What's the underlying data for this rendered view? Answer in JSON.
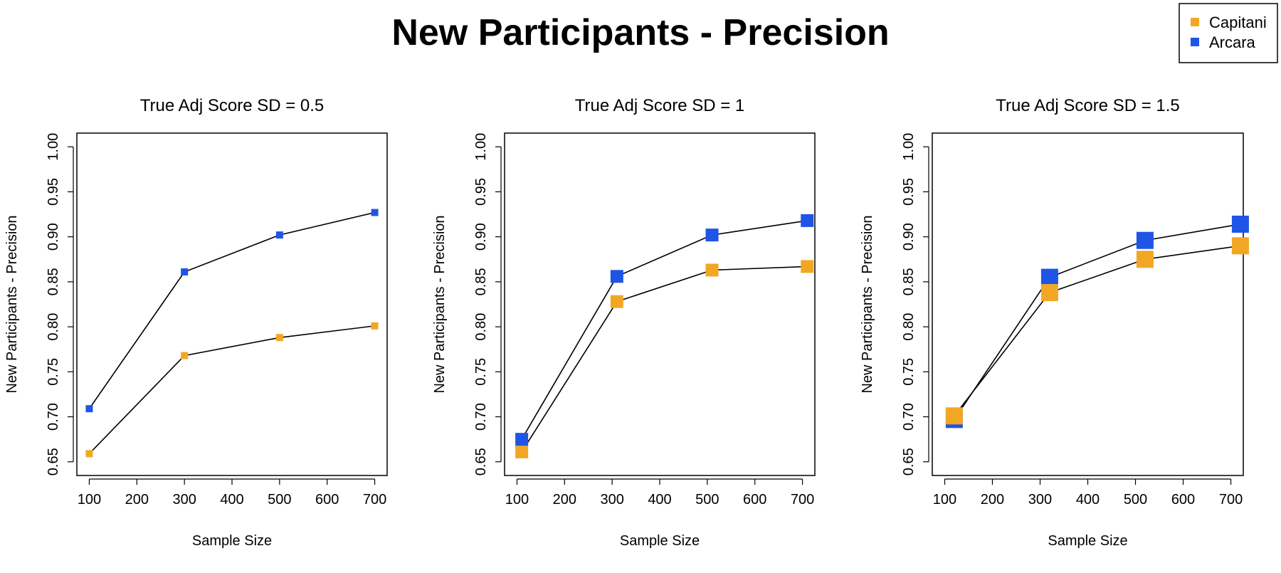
{
  "title": "New Participants - Precision",
  "legend": {
    "position": "top-right",
    "items": [
      {
        "label": "Capitani",
        "color": "#f2a724"
      },
      {
        "label": "Arcara",
        "color": "#1f55e6"
      }
    ]
  },
  "chart_data": [
    {
      "type": "line",
      "title": "True Adj Score SD = 0.5",
      "xlabel": "Sample Size",
      "ylabel": "New Participants - Precision",
      "xlim": [
        100,
        700
      ],
      "ylim": [
        0.65,
        1.0
      ],
      "xticks": [
        "100",
        "200",
        "300",
        "400",
        "500",
        "600",
        "700"
      ],
      "yticks": [
        "0.65",
        "0.70",
        "0.75",
        "0.80",
        "0.85",
        "0.90",
        "0.95",
        "1.00"
      ],
      "x": [
        100,
        300,
        500,
        700
      ],
      "series": [
        {
          "name": "Capitani",
          "color": "#f2a724",
          "values": [
            0.659,
            0.768,
            0.788,
            0.801
          ]
        },
        {
          "name": "Arcara",
          "color": "#1f55e6",
          "values": [
            0.709,
            0.861,
            0.902,
            0.927
          ]
        }
      ]
    },
    {
      "type": "line",
      "title": "True Adj Score SD = 1",
      "xlabel": "Sample Size",
      "ylabel": "New Participants - Precision",
      "xlim": [
        100,
        700
      ],
      "ylim": [
        0.65,
        1.0
      ],
      "xticks": [
        "100",
        "200",
        "300",
        "400",
        "500",
        "600",
        "700"
      ],
      "yticks": [
        "0.65",
        "0.70",
        "0.75",
        "0.80",
        "0.85",
        "0.90",
        "0.95",
        "1.00"
      ],
      "x": [
        110,
        310,
        510,
        710
      ],
      "series": [
        {
          "name": "Capitani",
          "color": "#f2a724",
          "values": [
            0.661,
            0.828,
            0.863,
            0.867
          ]
        },
        {
          "name": "Arcara",
          "color": "#1f55e6",
          "values": [
            0.675,
            0.856,
            0.902,
            0.918
          ]
        }
      ]
    },
    {
      "type": "line",
      "title": "True Adj Score SD = 1.5",
      "xlabel": "Sample Size",
      "ylabel": "New Participants - Precision",
      "xlim": [
        100,
        700
      ],
      "ylim": [
        0.65,
        1.0
      ],
      "xticks": [
        "100",
        "200",
        "300",
        "400",
        "500",
        "600",
        "700"
      ],
      "yticks": [
        "0.65",
        "0.70",
        "0.75",
        "0.80",
        "0.85",
        "0.90",
        "0.95",
        "1.00"
      ],
      "x": [
        120,
        320,
        520,
        720
      ],
      "series": [
        {
          "name": "Arcara",
          "color": "#1f55e6",
          "values": [
            0.697,
            0.855,
            0.896,
            0.914
          ]
        },
        {
          "name": "Capitani",
          "color": "#f2a724",
          "values": [
            0.701,
            0.838,
            0.875,
            0.89
          ]
        }
      ]
    }
  ]
}
